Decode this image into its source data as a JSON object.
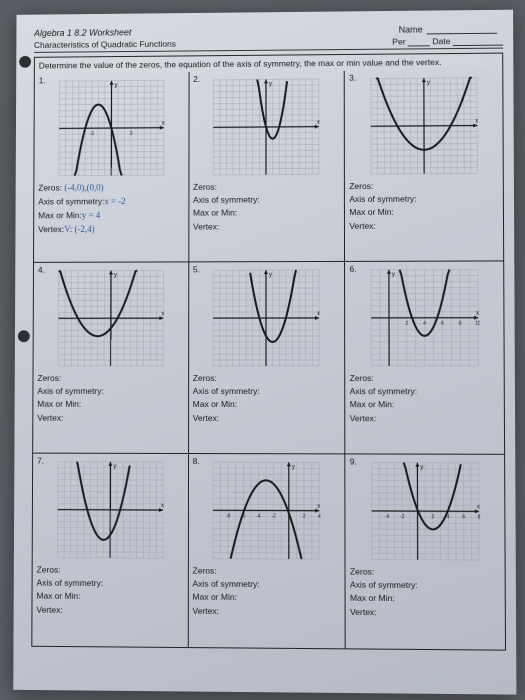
{
  "header": {
    "title": "Algebra 1 8.2 Worksheet",
    "subtitle": "Characteristics of Quadratic Functions",
    "name_label": "Name",
    "per_label": "Per",
    "date_label": "Date"
  },
  "instructions": "Determine the value of the zeros, the equation of the axis of symmetry, the max or min value and the vertex.",
  "labels": {
    "zeros": "Zeros:",
    "axis": "Axis of symmetry:",
    "maxmin": "Max or Min:",
    "vertex": "Vertex:"
  },
  "problems": [
    {
      "n": "1.",
      "graph": {
        "open": "down",
        "h": -2,
        "k": 4,
        "scale": -1,
        "xrange": [
          -8,
          8
        ],
        "yrange": [
          -8,
          8
        ],
        "xticks": [
          -3,
          3
        ],
        "yticks": []
      },
      "handwritten": {
        "zeros": "(-4,0),(0,0)",
        "axis_pre": " x = -2",
        "maxmin": " y = 4",
        "vertex": " V: (-2,4)"
      }
    },
    {
      "n": "2.",
      "graph": {
        "open": "up",
        "h": 1,
        "k": -2,
        "scale": 2,
        "xrange": [
          -8,
          8
        ],
        "yrange": [
          -8,
          8
        ],
        "xticks": [],
        "yticks": []
      }
    },
    {
      "n": "3.",
      "graph": {
        "open": "up",
        "h": 0,
        "k": -4,
        "scale": 0.25,
        "xrange": [
          -8,
          8
        ],
        "yrange": [
          -8,
          8
        ],
        "xticks": [],
        "yticks": []
      }
    },
    {
      "n": "4.",
      "graph": {
        "open": "up",
        "h": -2,
        "k": -3,
        "scale": 0.33,
        "xrange": [
          -8,
          8
        ],
        "yrange": [
          -8,
          8
        ],
        "xticks": [],
        "yticks": []
      }
    },
    {
      "n": "5.",
      "graph": {
        "open": "up",
        "h": 1,
        "k": -4,
        "scale": 1,
        "xrange": [
          -8,
          8
        ],
        "yrange": [
          -8,
          8
        ],
        "xticks": [],
        "yticks": []
      }
    },
    {
      "n": "6.",
      "graph": {
        "open": "up",
        "h": 4,
        "k": -3,
        "scale": 1.5,
        "xrange": [
          -2,
          10
        ],
        "yrange": [
          -8,
          8
        ],
        "xticks": [
          2,
          4,
          6,
          8,
          10
        ],
        "yticks": []
      }
    },
    {
      "n": "7.",
      "graph": {
        "open": "up",
        "h": -1,
        "k": -5,
        "scale": 0.8,
        "xrange": [
          -8,
          8
        ],
        "yrange": [
          -8,
          8
        ],
        "xticks": [],
        "yticks": []
      }
    },
    {
      "n": "8.",
      "graph": {
        "open": "down",
        "h": -3,
        "k": 5,
        "scale": -0.6,
        "xrange": [
          -10,
          4
        ],
        "yrange": [
          -8,
          8
        ],
        "xticks": [
          -8,
          -6,
          -4,
          -2,
          2,
          4
        ],
        "yticks": []
      }
    },
    {
      "n": "9.",
      "graph": {
        "open": "up",
        "h": 2,
        "k": -3,
        "scale": 0.8,
        "xrange": [
          -6,
          8
        ],
        "yrange": [
          -8,
          8
        ],
        "xticks": [
          -4,
          -2,
          2,
          4,
          6,
          8
        ],
        "yticks": []
      }
    }
  ],
  "style": {
    "grid_color": "#9aa0aa",
    "axis_color": "#1a1a1a",
    "curve_color": "#1a1a1a",
    "curve_width": 2,
    "grid_width": 0.4
  }
}
